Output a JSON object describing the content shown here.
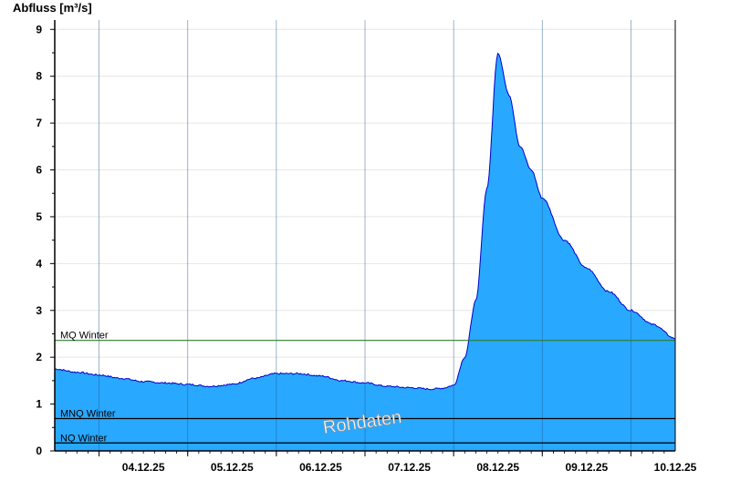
{
  "chart_data": {
    "type": "area",
    "ylabel": "Abfluss [m³/s]",
    "ylim": [
      0,
      9.2
    ],
    "yticks": [
      0,
      1,
      2,
      3,
      4,
      5,
      6,
      7,
      8,
      9
    ],
    "xlim": [
      "03.12.25 12:00",
      "10.12.25 12:00"
    ],
    "xtick_labels": [
      "04.12.25",
      "05.12.25",
      "06.12.25",
      "07.12.25",
      "08.12.25",
      "09.12.25",
      "10.12.25"
    ],
    "grid": true,
    "area_color": "#29A8FF",
    "line_color": "#0000CC",
    "watermark": "Rohdaten",
    "series": [
      {
        "x": [
          "03.12.25 12:00",
          "03.12.25 18:00",
          "04.12.25 00:00",
          "04.12.25 06:00",
          "04.12.25 12:00",
          "04.12.25 18:00",
          "05.12.25 00:00",
          "05.12.25 06:00",
          "05.12.25 12:00",
          "05.12.25 18:00",
          "06.12.25 00:00",
          "06.12.25 06:00",
          "06.12.25 12:00",
          "06.12.25 18:00",
          "07.12.25 00:00",
          "07.12.25 06:00",
          "07.12.25 12:00",
          "07.12.25 18:00",
          "07.12.25 21:00",
          "08.12.25 00:00",
          "08.12.25 03:00",
          "08.12.25 06:00",
          "08.12.25 09:00",
          "08.12.25 12:00",
          "08.12.25 15:00",
          "08.12.25 18:00",
          "08.12.25 21:00",
          "09.12.25 00:00",
          "09.12.25 06:00",
          "09.12.25 12:00",
          "09.12.25 18:00",
          "10.12.25 00:00",
          "10.12.25 06:00",
          "10.12.25 12:00"
        ],
        "values": [
          1.75,
          1.68,
          1.62,
          1.55,
          1.48,
          1.45,
          1.42,
          1.38,
          1.42,
          1.55,
          1.65,
          1.65,
          1.6,
          1.5,
          1.45,
          1.38,
          1.35,
          1.32,
          1.34,
          1.4,
          2.0,
          3.2,
          5.6,
          8.5,
          7.6,
          6.5,
          6.0,
          5.4,
          4.5,
          3.9,
          3.4,
          3.0,
          2.7,
          2.4
        ]
      }
    ],
    "reference_lines": [
      {
        "label": "MQ Winter",
        "value": 2.36,
        "color": "#2E7D32"
      },
      {
        "label": "MNQ Winter",
        "value": 0.69,
        "color": "#000000"
      },
      {
        "label": "NQ Winter",
        "value": 0.17,
        "color": "#000000"
      }
    ]
  }
}
